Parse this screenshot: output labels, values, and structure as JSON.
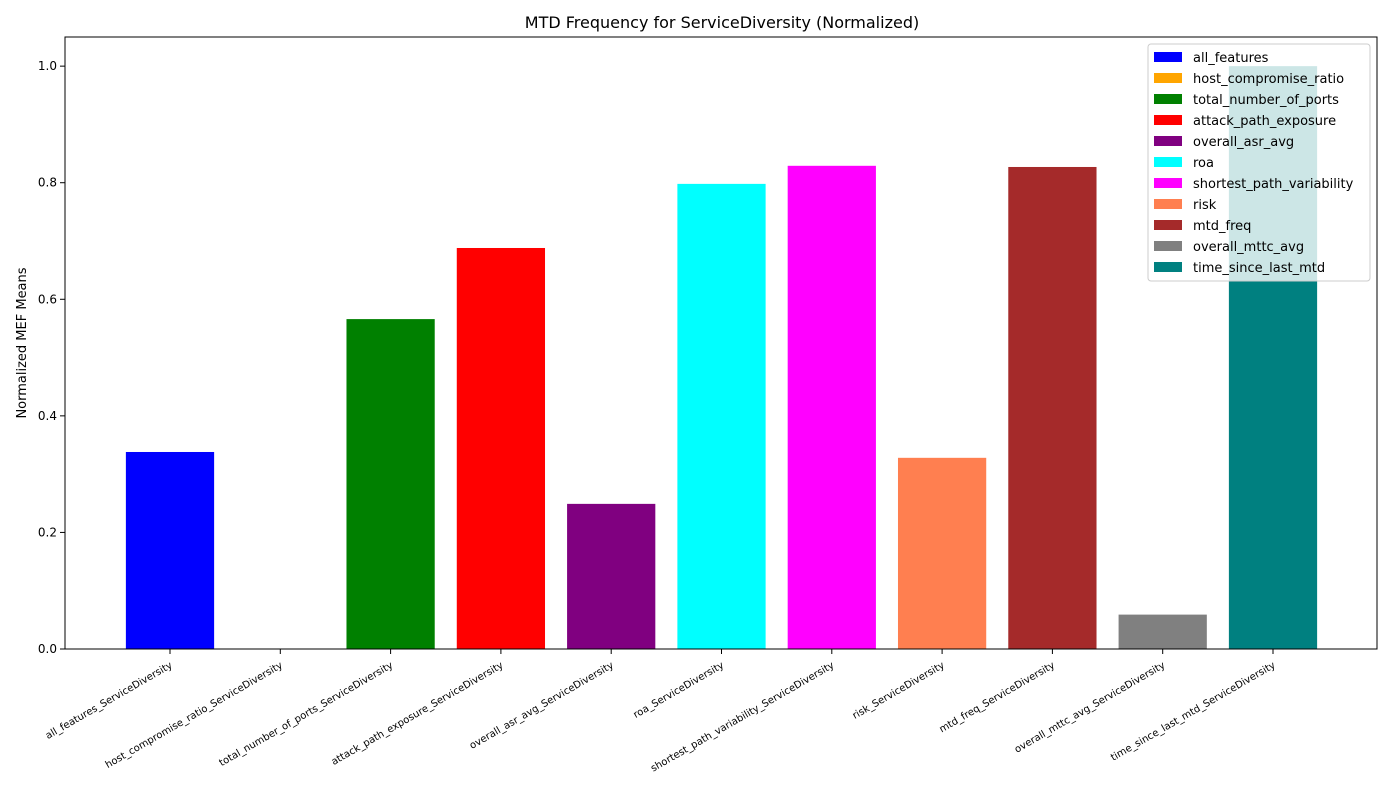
{
  "chart_data": {
    "type": "bar",
    "title": "MTD Frequency for ServiceDiversity (Normalized)",
    "xlabel": "",
    "ylabel": "Normalized MEF Means",
    "ylim": [
      0,
      1.05
    ],
    "yticks": [
      0.0,
      0.2,
      0.4,
      0.6,
      0.8,
      1.0
    ],
    "ytick_labels": [
      "0.0",
      "0.2",
      "0.4",
      "0.6",
      "0.8",
      "1.0"
    ],
    "grid": false,
    "legend_position": "top-right",
    "categories": [
      "all_features_ServiceDiversity",
      "host_compromise_ratio_ServiceDiversity",
      "total_number_of_ports_ServiceDiversity",
      "attack_path_exposure_ServiceDiversity",
      "overall_asr_avg_ServiceDiversity",
      "roa_ServiceDiversity",
      "shortest_path_variability_ServiceDiversity",
      "risk_ServiceDiversity",
      "mtd_freq_ServiceDiversity",
      "overall_mttc_avg_ServiceDiversity",
      "time_since_last_mtd_ServiceDiversity"
    ],
    "values": [
      0.338,
      0.0,
      0.566,
      0.688,
      0.249,
      0.798,
      0.829,
      0.328,
      0.827,
      0.059,
      1.0
    ],
    "colors": [
      "#0000ff",
      "#ffa500",
      "#008000",
      "#ff0000",
      "#800080",
      "#00ffff",
      "#ff00ff",
      "#ff7f50",
      "#a52a2a",
      "#808080",
      "#008080"
    ],
    "legend": [
      "all_features",
      "host_compromise_ratio",
      "total_number_of_ports",
      "attack_path_exposure",
      "overall_asr_avg",
      "roa",
      "shortest_path_variability",
      "risk",
      "mtd_freq",
      "overall_mttc_avg",
      "time_since_last_mtd"
    ]
  }
}
